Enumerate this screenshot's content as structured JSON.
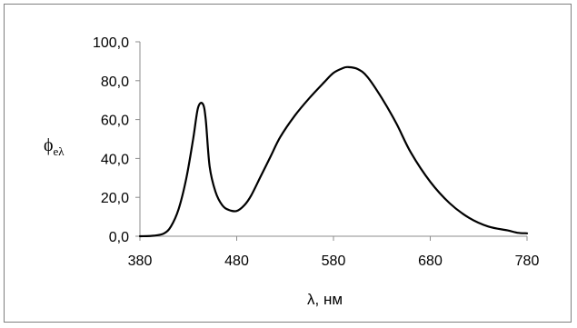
{
  "chart_data": {
    "type": "line",
    "title": "",
    "xlabel": "λ, нм",
    "ylabel_symbol": "ϕ",
    "ylabel_subscript": "eλ",
    "xlim": [
      380,
      780
    ],
    "ylim": [
      0,
      100
    ],
    "x_ticks": [
      "380",
      "480",
      "580",
      "680",
      "780"
    ],
    "x_tick_values": [
      380,
      480,
      580,
      680,
      780
    ],
    "y_ticks": [
      "0,0",
      "20,0",
      "40,0",
      "60,0",
      "80,0",
      "100,0"
    ],
    "y_tick_values": [
      0,
      20,
      40,
      60,
      80,
      100
    ],
    "grid": false,
    "legend": "none",
    "line_color": "#000000",
    "series": [
      {
        "x": [
          380,
          395,
          405,
          412,
          420,
          428,
          435,
          440,
          445,
          448,
          452,
          458,
          465,
          472,
          480,
          488,
          495,
          505,
          515,
          525,
          540,
          555,
          570,
          580,
          590,
          595,
          605,
          615,
          630,
          645,
          660,
          680,
          700,
          720,
          740,
          760,
          770,
          780
        ],
        "y": [
          0,
          0.3,
          1.5,
          5,
          14,
          30,
          50,
          66,
          68,
          60,
          36,
          23,
          16,
          13.5,
          13,
          16,
          21,
          31,
          41,
          51,
          62,
          71,
          79,
          84,
          86.5,
          87,
          86,
          82,
          71,
          58,
          43,
          28,
          17,
          9.5,
          5,
          3,
          1.8,
          1.5
        ]
      }
    ]
  }
}
